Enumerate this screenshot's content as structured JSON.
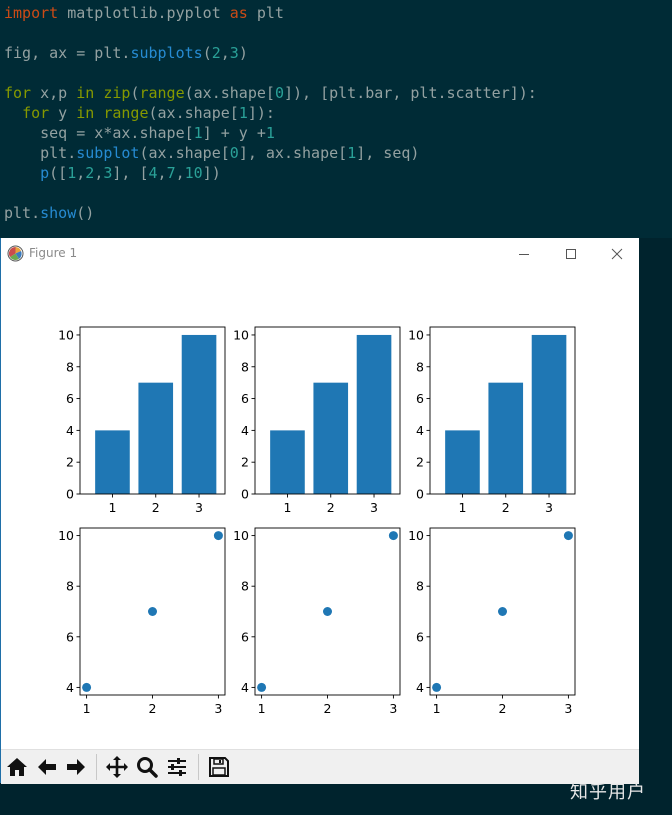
{
  "code": {
    "line1": {
      "a": "import",
      "b": " matplotlib.pyplot ",
      "c": "as",
      "d": " plt"
    },
    "line2": {
      "a": "fig, ax = plt.",
      "b": "subplots",
      "c": "(",
      "d": "2",
      "e": ",",
      "f": "3",
      "g": ")"
    },
    "line3": {
      "a": "for",
      "b": " x,p ",
      "c": "in",
      "d": " ",
      "e": "zip",
      "f": "(",
      "g": "range",
      "h": "(ax.shape[",
      "i": "0",
      "j": "]), [plt.bar, plt.scatter]):"
    },
    "line4": {
      "a": "  ",
      "b": "for",
      "c": " y ",
      "d": "in",
      "e": " ",
      "f": "range",
      "g": "(ax.shape[",
      "h": "1",
      "i": "]):"
    },
    "line5": {
      "a": "    seq = x*ax.shape[",
      "b": "1",
      "c": "] + y +",
      "d": "1"
    },
    "line6": {
      "a": "    plt.",
      "b": "subplot",
      "c": "(ax.shape[",
      "d": "0",
      "e": "], ax.shape[",
      "f": "1",
      "g": "], seq)"
    },
    "line7": {
      "a": "    ",
      "b": "p",
      "c": "([",
      "d": "1",
      "e": ",",
      "f": "2",
      "g": ",",
      "h": "3",
      "i": "], [",
      "j": "4",
      "k": ",",
      "l": "7",
      "m": ",",
      "n": "10",
      "o": "])"
    },
    "line8": {
      "a": "plt.",
      "b": "show",
      "c": "()"
    }
  },
  "window": {
    "title": "Figure 1",
    "icons": {
      "app": "matplotlib-icon",
      "minimize": "minimize-icon",
      "maximize": "maximize-icon",
      "close": "close-icon"
    }
  },
  "toolbar": {
    "items": [
      "home-icon",
      "back-arrow-icon",
      "forward-arrow-icon",
      "pan-icon",
      "zoom-icon",
      "configure-subplots-icon",
      "save-icon"
    ]
  },
  "chart_data": [
    {
      "type": "bar",
      "categories": [
        1,
        2,
        3
      ],
      "values": [
        4,
        7,
        10
      ],
      "yticks": [
        0,
        2,
        4,
        6,
        8,
        10
      ],
      "xticks": [
        1,
        2,
        3
      ],
      "color": "#1f77b4",
      "grid": false
    },
    {
      "type": "bar",
      "categories": [
        1,
        2,
        3
      ],
      "values": [
        4,
        7,
        10
      ],
      "yticks": [
        0,
        2,
        4,
        6,
        8,
        10
      ],
      "xticks": [
        1,
        2,
        3
      ],
      "color": "#1f77b4",
      "grid": false
    },
    {
      "type": "bar",
      "categories": [
        1,
        2,
        3
      ],
      "values": [
        4,
        7,
        10
      ],
      "yticks": [
        0,
        2,
        4,
        6,
        8,
        10
      ],
      "xticks": [
        1,
        2,
        3
      ],
      "color": "#1f77b4",
      "grid": false
    },
    {
      "type": "scatter",
      "x": [
        1,
        2,
        3
      ],
      "y": [
        4,
        7,
        10
      ],
      "yticks": [
        4,
        6,
        8,
        10
      ],
      "xticks": [
        1,
        2,
        3
      ],
      "color": "#1f77b4",
      "grid": false
    },
    {
      "type": "scatter",
      "x": [
        1,
        2,
        3
      ],
      "y": [
        4,
        7,
        10
      ],
      "yticks": [
        4,
        6,
        8,
        10
      ],
      "xticks": [
        1,
        2,
        3
      ],
      "color": "#1f77b4",
      "grid": false
    },
    {
      "type": "scatter",
      "x": [
        1,
        2,
        3
      ],
      "y": [
        4,
        7,
        10
      ],
      "yticks": [
        4,
        6,
        8,
        10
      ],
      "xticks": [
        1,
        2,
        3
      ],
      "color": "#1f77b4",
      "grid": false
    }
  ],
  "watermark": "知乎用户"
}
